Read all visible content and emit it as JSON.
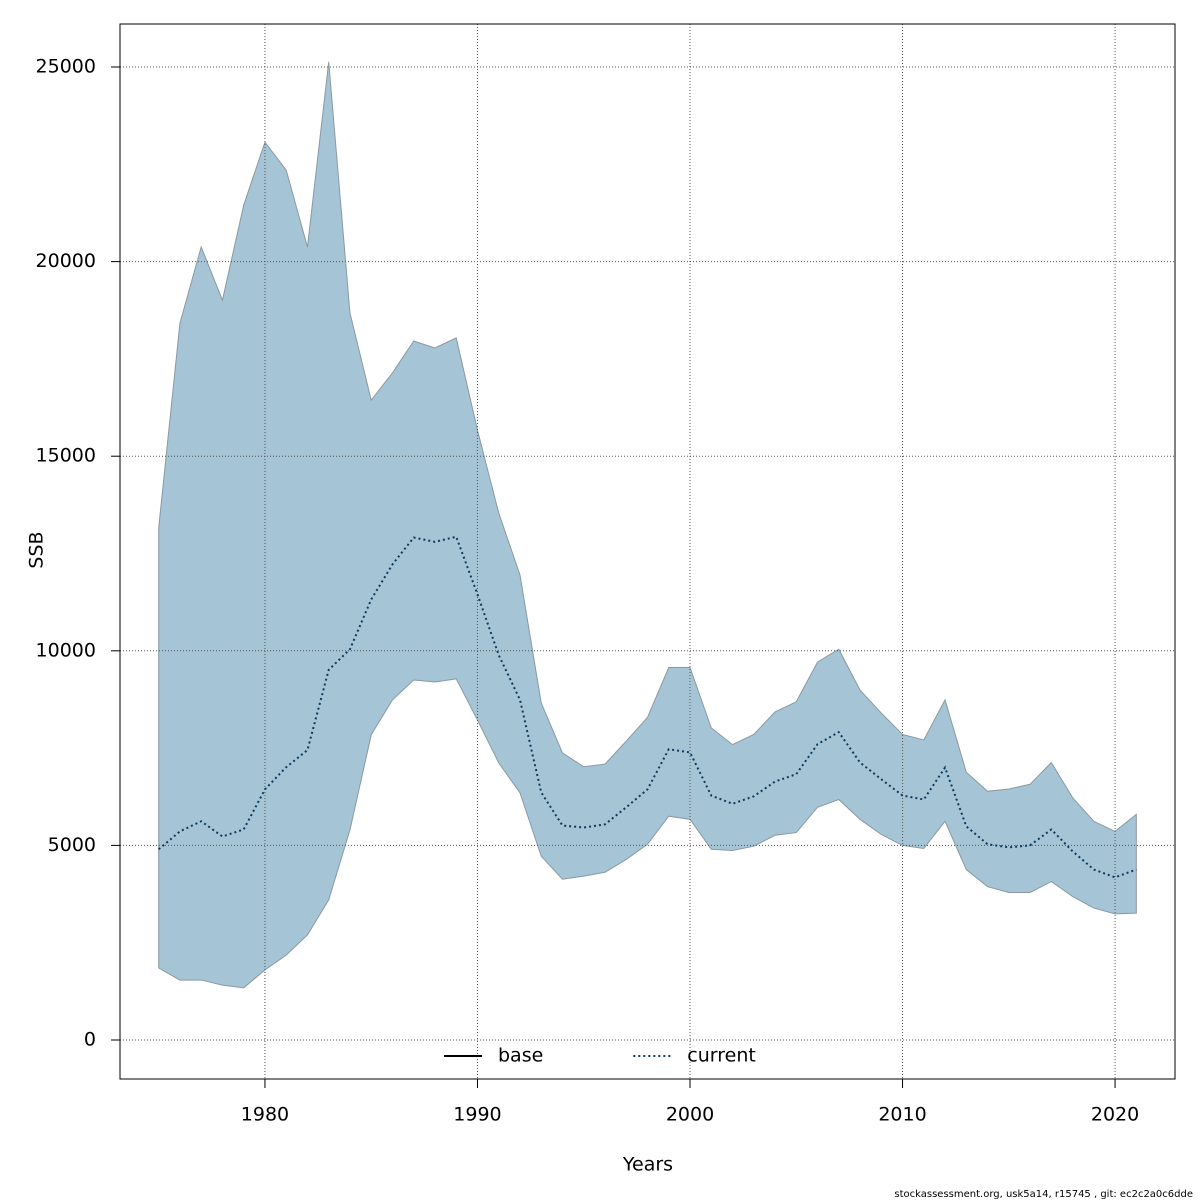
{
  "chart_data": {
    "type": "line",
    "xlabel": "Years",
    "ylabel": "SSB",
    "footer": "stockassessment.org, usk5a14, r15745 , git: ec2c2a0c6dde",
    "x": [
      1975,
      1976,
      1977,
      1978,
      1979,
      1980,
      1981,
      1982,
      1983,
      1984,
      1985,
      1986,
      1987,
      1988,
      1989,
      1990,
      1991,
      1992,
      1993,
      1994,
      1995,
      1996,
      1997,
      1998,
      1999,
      2000,
      2001,
      2002,
      2003,
      2004,
      2005,
      2006,
      2007,
      2008,
      2009,
      2010,
      2011,
      2012,
      2013,
      2014,
      2015,
      2016,
      2017,
      2018,
      2019,
      2020,
      2021
    ],
    "band": {
      "color": "#a5c4d5",
      "upper": [
        13155,
        18420,
        20375,
        19010,
        21450,
        23070,
        22350,
        20375,
        25130,
        18680,
        16440,
        17140,
        17960,
        17780,
        18040,
        15670,
        13540,
        11950,
        8660,
        7375,
        7020,
        7090,
        7680,
        8290,
        9570,
        9570,
        8020,
        7590,
        7850,
        8430,
        8690,
        9710,
        10040,
        8990,
        8400,
        7850,
        7710,
        8740,
        6880,
        6390,
        6450,
        6570,
        7130,
        6230,
        5620,
        5360,
        5800
      ],
      "lower": [
        1850,
        1540,
        1540,
        1410,
        1340,
        1800,
        2180,
        2700,
        3600,
        5400,
        7840,
        8740,
        9250,
        9200,
        9280,
        8220,
        7120,
        6350,
        4720,
        4130,
        4210,
        4310,
        4640,
        5030,
        5750,
        5670,
        4900,
        4870,
        4980,
        5260,
        5330,
        5980,
        6180,
        5670,
        5280,
        5000,
        4920,
        5620,
        4380,
        3940,
        3790,
        3790,
        4070,
        3690,
        3390,
        3240,
        3260
      ]
    },
    "series": [
      {
        "name": "base",
        "color": "#000000",
        "dash": "solid",
        "values": [
          null,
          null,
          null,
          null,
          null,
          null,
          null,
          null,
          null,
          null,
          null,
          null,
          null,
          null,
          null,
          null,
          null,
          null,
          null,
          null,
          null,
          null,
          null,
          null,
          null,
          null,
          null,
          null,
          null,
          null,
          null,
          null,
          null,
          null,
          null,
          null,
          null,
          null,
          null,
          null,
          null,
          null,
          null,
          null,
          null,
          null,
          null
        ]
      },
      {
        "name": "current",
        "color": "#0b3c5d",
        "dash": "dotted",
        "values": [
          4900,
          5360,
          5620,
          5230,
          5410,
          6440,
          7010,
          7450,
          9510,
          10040,
          11320,
          12220,
          12910,
          12800,
          12930,
          11450,
          9890,
          8740,
          6360,
          5510,
          5460,
          5540,
          5980,
          6440,
          7470,
          7390,
          6280,
          6070,
          6260,
          6640,
          6830,
          7600,
          7910,
          7130,
          6700,
          6280,
          6180,
          7000,
          5490,
          5030,
          4950,
          5000,
          5410,
          4850,
          4380,
          4180,
          4380
        ]
      }
    ],
    "xlim": [
      1973.18,
      2022.82
    ],
    "ylim": [
      -1002,
      26105
    ],
    "xticks": [
      1980,
      1990,
      2000,
      2010,
      2020
    ],
    "yticks": [
      0,
      5000,
      10000,
      15000,
      20000,
      25000
    ],
    "grid": true,
    "legend": "bottom"
  }
}
